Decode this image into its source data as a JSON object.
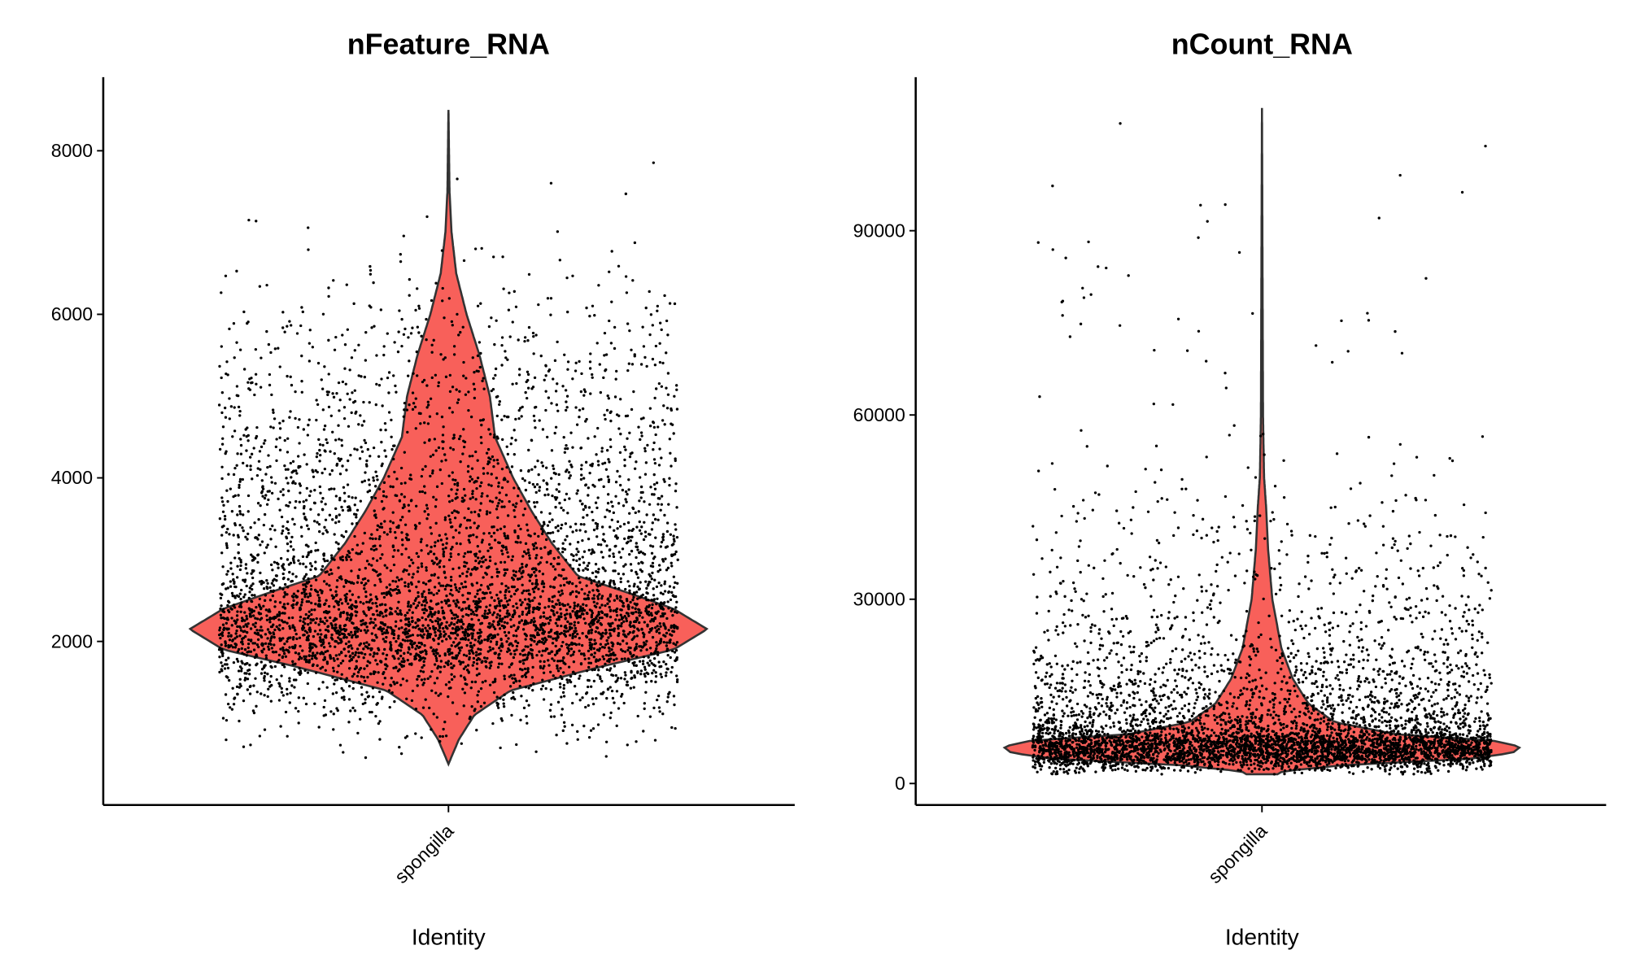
{
  "chart_data": [
    {
      "type": "violin",
      "title": "nFeature_RNA",
      "xlabel": "Identity",
      "ylabel": "",
      "categories": [
        "spongilla"
      ],
      "yticks": [
        2000,
        4000,
        6000,
        8000
      ],
      "ytick_labels": [
        "2000",
        "4000",
        "6000",
        "8000"
      ],
      "ylim": [
        0,
        8900
      ],
      "fill_color": "#F8605A",
      "point_color": "#000000",
      "value_range": [
        500,
        8500
      ],
      "density_profile": [
        [
          500,
          0
        ],
        [
          800,
          0.04
        ],
        [
          1100,
          0.1
        ],
        [
          1400,
          0.24
        ],
        [
          1700,
          0.6
        ],
        [
          1900,
          0.87
        ],
        [
          2150,
          1
        ],
        [
          2400,
          0.87
        ],
        [
          2600,
          0.69
        ],
        [
          2800,
          0.5
        ],
        [
          3200,
          0.4
        ],
        [
          3600,
          0.32
        ],
        [
          4000,
          0.25
        ],
        [
          4500,
          0.18
        ],
        [
          5000,
          0.16
        ],
        [
          5500,
          0.12
        ],
        [
          6000,
          0.07
        ],
        [
          6500,
          0.03
        ],
        [
          7000,
          0.012
        ],
        [
          7500,
          0.004
        ],
        [
          8500,
          0
        ]
      ]
    },
    {
      "type": "violin",
      "title": "nCount_RNA",
      "xlabel": "Identity",
      "ylabel": "",
      "categories": [
        "spongilla"
      ],
      "yticks": [
        0,
        30000,
        60000,
        90000
      ],
      "ytick_labels": [
        "0",
        "30000",
        "60000",
        "90000"
      ],
      "ylim": [
        -3500,
        115000
      ],
      "fill_color": "#F8605A",
      "point_color": "#000000",
      "value_range": [
        1500,
        110000
      ],
      "density_profile": [
        [
          1500,
          0.06
        ],
        [
          2000,
          0.08
        ],
        [
          3000,
          0.32
        ],
        [
          4000,
          0.8
        ],
        [
          5000,
          0.97
        ],
        [
          6000,
          1
        ],
        [
          7000,
          0.89
        ],
        [
          8000,
          0.52
        ],
        [
          10000,
          0.28
        ],
        [
          13000,
          0.18
        ],
        [
          17000,
          0.12
        ],
        [
          22000,
          0.075
        ],
        [
          30000,
          0.04
        ],
        [
          38000,
          0.024
        ],
        [
          45000,
          0.016
        ],
        [
          50000,
          0.008
        ],
        [
          60000,
          0.004
        ],
        [
          110000,
          0
        ]
      ]
    }
  ]
}
